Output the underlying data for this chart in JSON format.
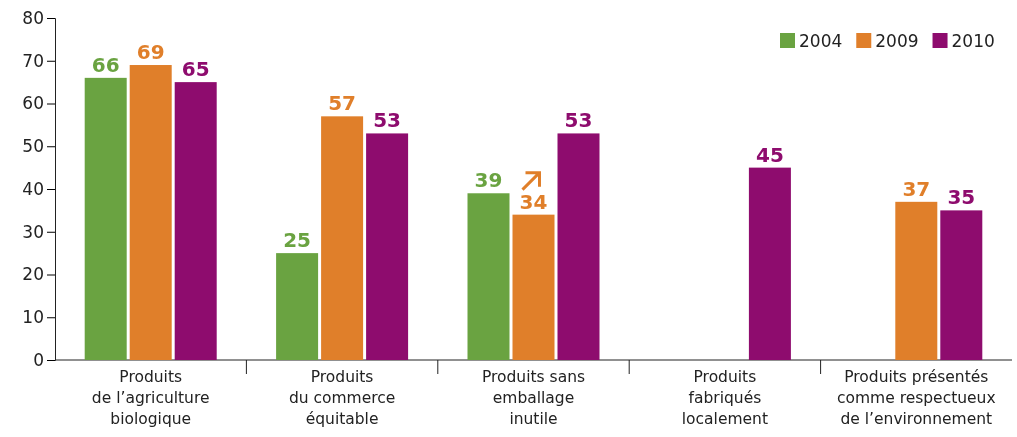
{
  "chart_data": {
    "type": "bar",
    "categories": [
      "Produits\nde l’agriculture\nbiologique",
      "Produits\ndu commerce\néquitable",
      "Produits sans\nemballage\ninutile",
      "Produits\nfabriqués\nlocalement",
      "Produits présentés\ncomme respectueux\nde l’environnement"
    ],
    "series": [
      {
        "name": "2004",
        "color": "#6aa341",
        "values": [
          66,
          25,
          39,
          null,
          null
        ]
      },
      {
        "name": "2009",
        "color": "#e07f2a",
        "values": [
          69,
          57,
          34,
          null,
          37
        ]
      },
      {
        "name": "2010",
        "color": "#8e0c6e",
        "values": [
          65,
          53,
          53,
          45,
          35
        ]
      }
    ],
    "ylim": [
      0,
      80
    ],
    "yticks": [
      0,
      10,
      20,
      30,
      40,
      50,
      60,
      70,
      80
    ],
    "data_labels": true,
    "legend": "top right"
  }
}
